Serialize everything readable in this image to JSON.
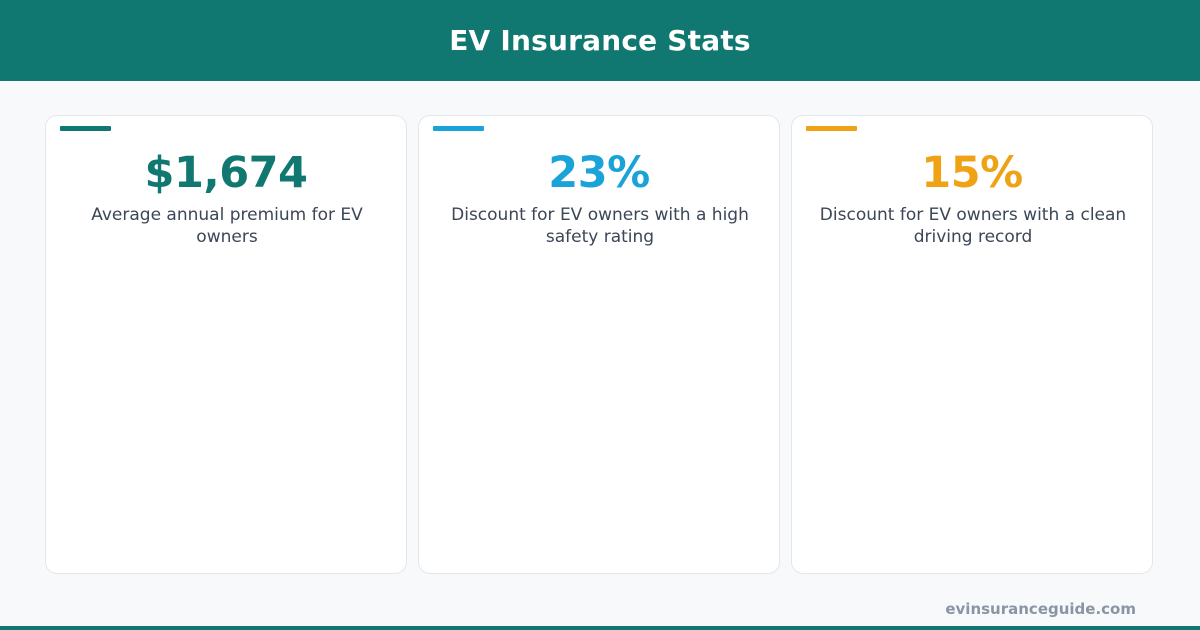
{
  "header": {
    "title": "EV Insurance Stats",
    "background_color": "#107870"
  },
  "stats": [
    {
      "value": "$1,674",
      "description": "Average annual premium for EV owners",
      "accent_color": "#107870"
    },
    {
      "value": "23%",
      "description": "Discount for EV owners with a high safety rating",
      "accent_color": "#1aa3d9"
    },
    {
      "value": "15%",
      "description": "Discount for EV owners with a clean driving record",
      "accent_color": "#eea214"
    }
  ],
  "footer": {
    "url": "evinsuranceguide.com",
    "bar_color": "#107870"
  }
}
